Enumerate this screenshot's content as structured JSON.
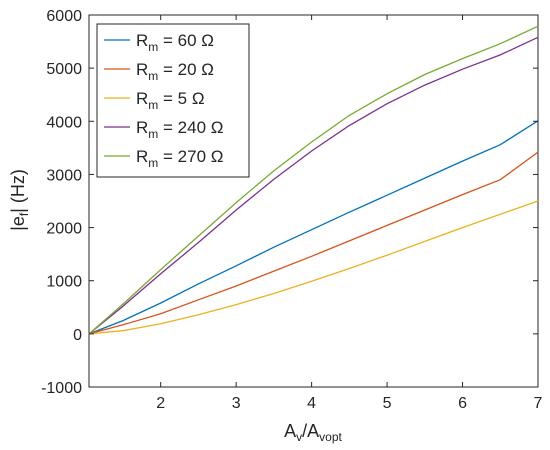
{
  "chart_data": {
    "type": "line",
    "title": "",
    "xlabel": {
      "main": "A",
      "sub1": "v",
      "mid": "/A",
      "sub2": "vopt"
    },
    "ylabel": {
      "pre": "|e",
      "sub": "f",
      "post": "| (Hz)"
    },
    "xlim": [
      1.05,
      7
    ],
    "ylim": [
      -1000,
      6000
    ],
    "xticks": [
      2,
      3,
      4,
      5,
      6,
      7
    ],
    "yticks": [
      -1000,
      0,
      1000,
      2000,
      3000,
      4000,
      5000,
      6000
    ],
    "grid": false,
    "legend_position": "top-left",
    "x": [
      1.05,
      1.5,
      2,
      2.5,
      3,
      3.5,
      4,
      4.5,
      5,
      5.5,
      6,
      6.5,
      7
    ],
    "series": [
      {
        "name": "60 Ω",
        "color": "#0072BD",
        "values": [
          0,
          250,
          580,
          940,
          1280,
          1630,
          1960,
          2290,
          2610,
          2930,
          3250,
          3560,
          4010
        ]
      },
      {
        "name": "20 Ω",
        "color": "#D95319",
        "values": [
          0,
          170,
          380,
          640,
          900,
          1180,
          1460,
          1750,
          2040,
          2330,
          2620,
          2900,
          3420
        ]
      },
      {
        "name": "5 Ω",
        "color": "#EDB120",
        "values": [
          0,
          60,
          190,
          360,
          550,
          760,
          990,
          1230,
          1480,
          1740,
          2000,
          2250,
          2500
        ]
      },
      {
        "name": "240 Ω",
        "color": "#7E2F8E",
        "values": [
          0,
          520,
          1130,
          1720,
          2330,
          2910,
          3440,
          3920,
          4330,
          4680,
          4980,
          5250,
          5580
        ]
      },
      {
        "name": "270 Ω",
        "color": "#77AC30",
        "values": [
          0,
          560,
          1210,
          1840,
          2470,
          3070,
          3610,
          4110,
          4520,
          4880,
          5180,
          5460,
          5790
        ]
      }
    ],
    "legend_prefix": {
      "main": "R",
      "sub": "m",
      "eq": " = "
    }
  }
}
